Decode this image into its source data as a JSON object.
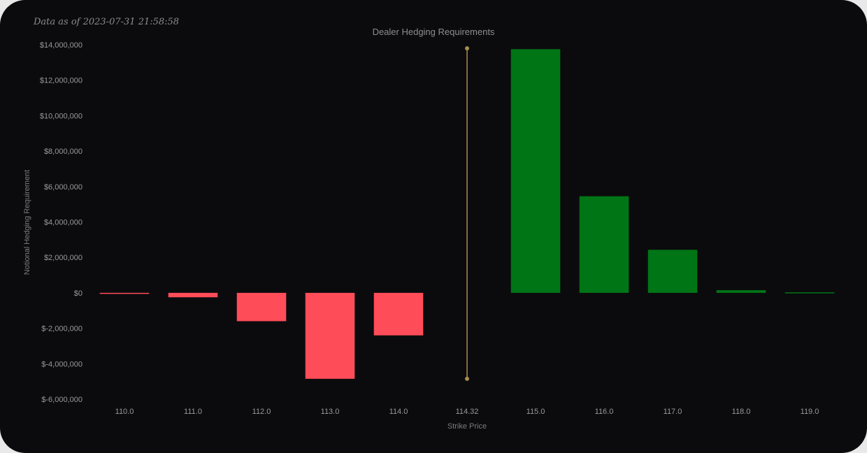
{
  "as_of_text": "Data as of 2023-07-31 21:58:58",
  "chart_data": {
    "type": "bar",
    "title": "Dealer Hedging Requirements",
    "xlabel": "Strike Price",
    "ylabel": "Notional Hedging Requirement",
    "categories": [
      "110.0",
      "111.0",
      "112.0",
      "113.0",
      "114.0",
      "114.32",
      "115.0",
      "116.0",
      "117.0",
      "118.0",
      "119.0"
    ],
    "values": [
      -40000,
      -250000,
      -1600000,
      -4850000,
      -2400000,
      null,
      13750000,
      5450000,
      2430000,
      150000,
      30000
    ],
    "ylim": [
      -6000000,
      14000000
    ],
    "yticks": [
      14000000,
      12000000,
      10000000,
      8000000,
      6000000,
      4000000,
      2000000,
      0,
      -2000000,
      -4000000,
      -6000000
    ],
    "ytick_labels": [
      "$14,000,000",
      "$12,000,000",
      "$10,000,000",
      "$8,000,000",
      "$6,000,000",
      "$4,000,000",
      "$2,000,000",
      "$0",
      "$-2,000,000",
      "$-4,000,000",
      "$-6,000,000"
    ],
    "spot_marker": {
      "category": "114.32",
      "y_top": 13800000,
      "y_bottom": -4850000,
      "color": "#a88d4e"
    },
    "colors": {
      "positive": "#007516",
      "negative": "#ff4c59"
    },
    "grid": false,
    "legend": "none"
  }
}
